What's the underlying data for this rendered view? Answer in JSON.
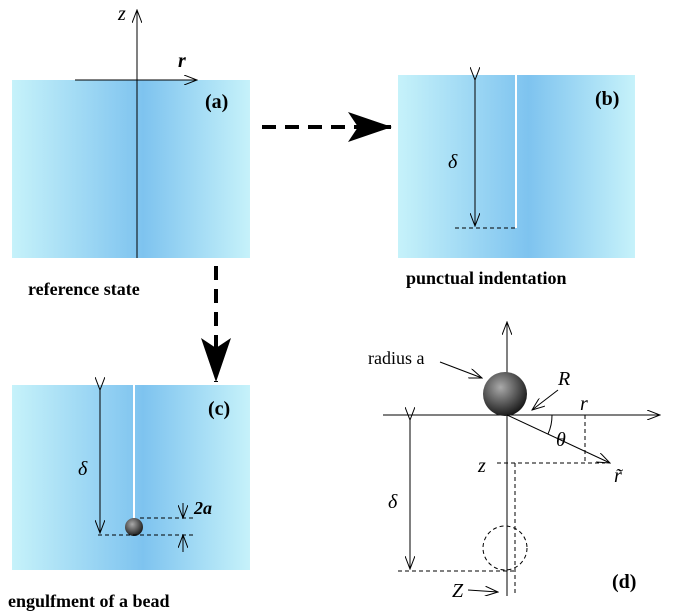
{
  "panel_a": {
    "axis_z": "z",
    "axis_r": "r",
    "tag": "(a)",
    "caption": "reference state"
  },
  "panel_b": {
    "delta": "δ",
    "tag": "(b)",
    "caption": "punctual indentation"
  },
  "panel_c": {
    "delta": "δ",
    "bead_size": "2a",
    "tag": "(c)",
    "caption": "engulfment of a bead"
  },
  "panel_d": {
    "radius_label": "radius a",
    "R": "R",
    "r": "r",
    "theta": "θ",
    "z": "z",
    "r_tilde": "r̃",
    "delta": "δ",
    "Z": "Z",
    "tag": "(d)"
  }
}
